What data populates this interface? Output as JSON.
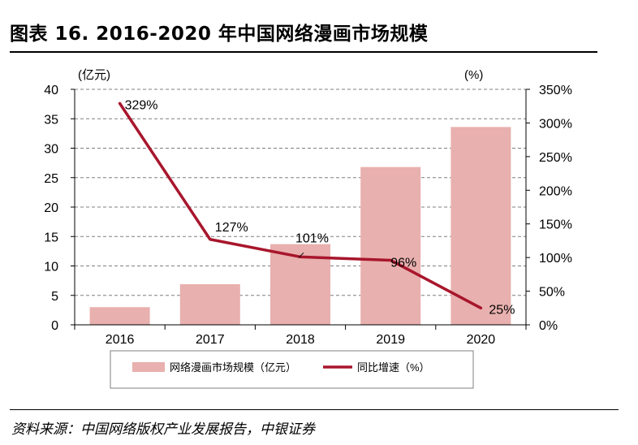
{
  "figure": {
    "title": "图表 16. 2016-2020 年中国网络漫画市场规模",
    "source": "资料来源：中国网络版权产业发展报告，中银证券"
  },
  "chart_data": {
    "type": "bar+line",
    "categories": [
      "2016",
      "2017",
      "2018",
      "2019",
      "2020"
    ],
    "series": [
      {
        "name": "网络漫画市场规模（亿元）",
        "type": "bar",
        "axis": "left",
        "values": [
          3.0,
          6.9,
          13.7,
          26.8,
          33.6
        ],
        "color": "#e8b0ae"
      },
      {
        "name": "同比增速（%）",
        "type": "line",
        "axis": "right",
        "values": [
          329,
          127,
          101,
          96,
          25
        ],
        "color": "#a8162c",
        "labels": [
          "329%",
          "127%",
          "101%",
          "96%",
          "25%"
        ]
      }
    ],
    "y_left": {
      "unit_label": "(亿元)",
      "min": 0,
      "max": 40,
      "step": 5
    },
    "y_right": {
      "unit_label": "(%)",
      "min": 0,
      "max": 350,
      "step": 50,
      "suffix": "%"
    },
    "grid": true,
    "legend": "bottom"
  }
}
